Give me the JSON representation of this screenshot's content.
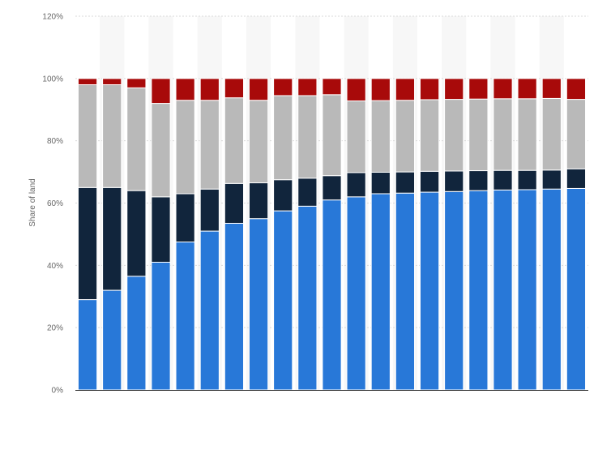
{
  "chart_data": {
    "type": "bar",
    "stacked": true,
    "title": "",
    "xlabel": "",
    "ylabel": "Share of land",
    "ylim": [
      0,
      120
    ],
    "yticks": [
      "0%",
      "20%",
      "40%",
      "60%",
      "80%",
      "100%",
      "120%"
    ],
    "grid": true,
    "legend": "none",
    "x_tick_labels_visible": false,
    "bar_count": 21,
    "series": [
      {
        "color": "#2878d8",
        "values": [
          29,
          32,
          36.5,
          41,
          47.5,
          51,
          53.5,
          55,
          57.5,
          59,
          61,
          62,
          63,
          63.2,
          63.5,
          63.7,
          64,
          64.2,
          64.3,
          64.5,
          64.7
        ]
      },
      {
        "color": "#11253c",
        "values": [
          36,
          33,
          27.5,
          21,
          15.5,
          13.5,
          12.8,
          11.5,
          10,
          9,
          7.8,
          7.8,
          6.9,
          6.8,
          6.7,
          6.6,
          6.4,
          6.3,
          6.2,
          6.1,
          6.3
        ]
      },
      {
        "color": "#b9b9b9",
        "values": [
          33,
          33,
          33,
          30,
          30,
          28.5,
          27.5,
          26.5,
          27,
          26.5,
          26,
          23,
          23,
          23,
          23,
          23,
          23,
          23,
          23,
          23,
          22.3
        ]
      },
      {
        "color": "#a80a0a",
        "values": [
          2,
          2,
          3,
          8,
          7,
          7,
          6.2,
          7,
          5.5,
          5.5,
          5.2,
          7.2,
          7.1,
          7,
          6.8,
          6.7,
          6.6,
          6.5,
          6.5,
          6.4,
          6.7
        ]
      }
    ]
  }
}
